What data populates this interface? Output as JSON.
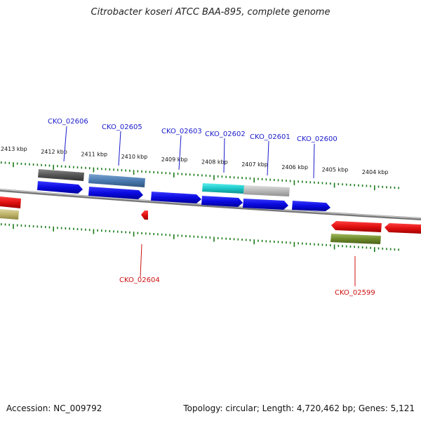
{
  "title": "Citrobacter koseri ATCC BAA-895, complete genome",
  "footer": {
    "accession": "Accession: NC_009792",
    "summary": "Topology: circular; Length: 4,720,462 bp; Genes: 5,121"
  },
  "ticks": [
    {
      "label": "2413 kbp",
      "kbp": 2413
    },
    {
      "label": "2412 kbp",
      "kbp": 2412
    },
    {
      "label": "2411 kbp",
      "kbp": 2411
    },
    {
      "label": "2410 kbp",
      "kbp": 2410
    },
    {
      "label": "2409 kbp",
      "kbp": 2409
    },
    {
      "label": "2408 kbp",
      "kbp": 2408
    },
    {
      "label": "2407 kbp",
      "kbp": 2407
    },
    {
      "label": "2406 kbp",
      "kbp": 2406
    },
    {
      "label": "2405 kbp",
      "kbp": 2405
    },
    {
      "label": "2404 kbp",
      "kbp": 2404
    }
  ],
  "gene_labels": [
    {
      "text": "CKO_02606",
      "strand": "forward"
    },
    {
      "text": "CKO_02605",
      "strand": "forward"
    },
    {
      "text": "CKO_02603",
      "strand": "forward"
    },
    {
      "text": "CKO_02602",
      "strand": "forward"
    },
    {
      "text": "CKO_02601",
      "strand": "forward"
    },
    {
      "text": "CKO_02600",
      "strand": "forward"
    },
    {
      "text": "CKO_02604",
      "strand": "reverse"
    },
    {
      "text": "CKO_02599",
      "strand": "reverse"
    }
  ],
  "colors": {
    "forward_label": "#1a1acc",
    "reverse_label": "#cc1111",
    "cds_forward": "#1010e0",
    "cds_reverse": "#e01010",
    "tick": "#1a7a1a",
    "backbone": "#888888"
  }
}
